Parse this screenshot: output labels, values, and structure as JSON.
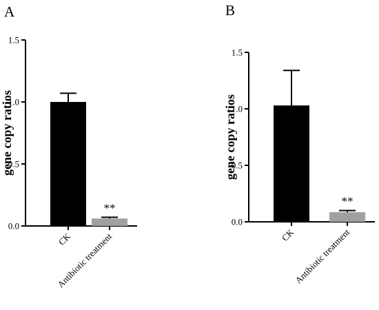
{
  "chart_data": [
    {
      "type": "bar",
      "panel_label": "A",
      "categories": [
        "CK",
        "Antibiotic treatment"
      ],
      "values": [
        1.0,
        0.06
      ],
      "error": [
        0.07,
        0.01
      ],
      "annotations": [
        "",
        "**"
      ],
      "bar_colors": [
        "#000000",
        "#a0a0a0"
      ],
      "ylabel": "gene copy ratios",
      "ylim": [
        0,
        1.5
      ],
      "yticks": [
        0,
        0.5,
        1.0,
        1.5
      ],
      "ytick_labels": [
        "0.0",
        "0.5",
        "1.0",
        "1.5"
      ],
      "grid": false
    },
    {
      "type": "bar",
      "panel_label": "B",
      "categories": [
        "CK",
        "Antibiotic treatment"
      ],
      "values": [
        1.03,
        0.085
      ],
      "error": [
        0.31,
        0.015
      ],
      "annotations": [
        "",
        "**"
      ],
      "bar_colors": [
        "#000000",
        "#a0a0a0"
      ],
      "ylabel": "gene copy ratios",
      "ylim": [
        0,
        1.5
      ],
      "yticks": [
        0,
        0.5,
        1.0,
        1.5
      ],
      "ytick_labels": [
        "0.0",
        "0.5",
        "1.0",
        "1.5"
      ],
      "grid": false
    }
  ]
}
